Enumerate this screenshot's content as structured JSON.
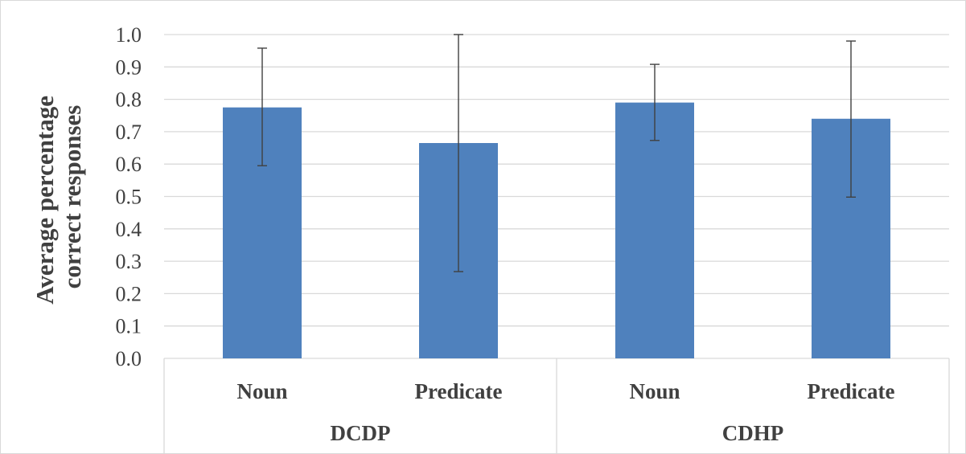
{
  "chart_data": {
    "type": "bar",
    "title": "",
    "ylabel_lines": [
      "Average percentage",
      "correct responses"
    ],
    "xlabel": "",
    "ylim": [
      0,
      1
    ],
    "yticks": [
      "0.0",
      "0.1",
      "0.2",
      "0.3",
      "0.4",
      "0.5",
      "0.6",
      "0.7",
      "0.8",
      "0.9",
      "1.0"
    ],
    "grid": "horizontal",
    "legend": "none",
    "bar_color": "#4f81bd",
    "groups": [
      {
        "label": "DCDP",
        "categories": [
          "Noun",
          "Predicate"
        ]
      },
      {
        "label": "CDHP",
        "categories": [
          "Noun",
          "Predicate"
        ]
      }
    ],
    "bars": [
      {
        "group": "DCDP",
        "category": "Noun",
        "value": 0.775,
        "err_low": 0.595,
        "err_high": 0.958
      },
      {
        "group": "DCDP",
        "category": "Predicate",
        "value": 0.665,
        "err_low": 0.268,
        "err_high": 1.0
      },
      {
        "group": "CDHP",
        "category": "Noun",
        "value": 0.79,
        "err_low": 0.673,
        "err_high": 0.908
      },
      {
        "group": "CDHP",
        "category": "Predicate",
        "value": 0.74,
        "err_low": 0.498,
        "err_high": 0.98
      }
    ]
  }
}
